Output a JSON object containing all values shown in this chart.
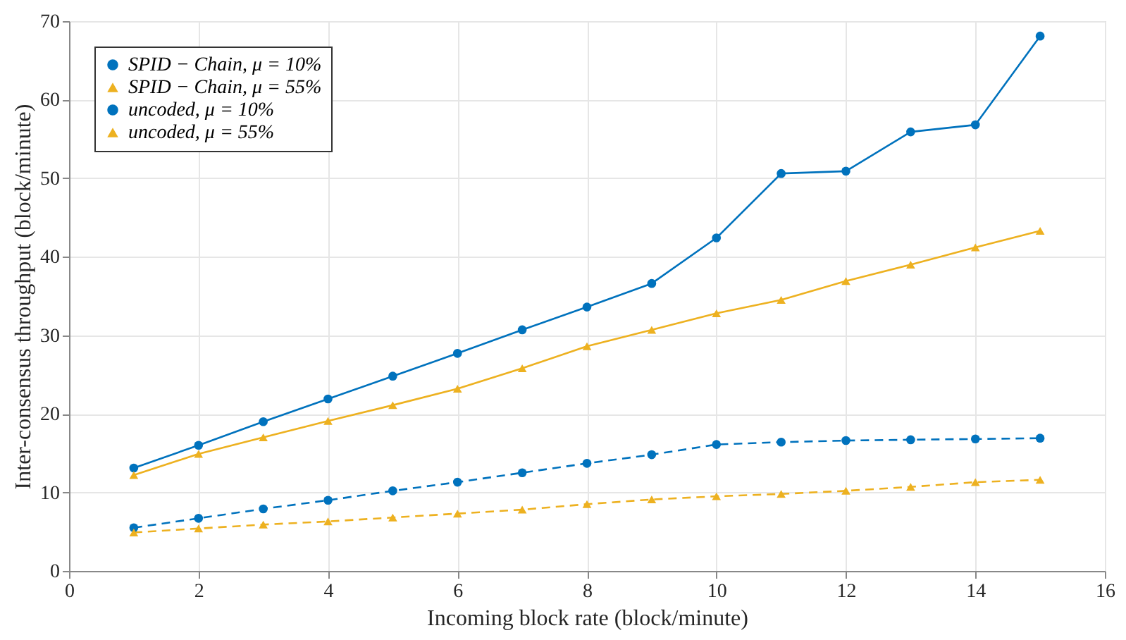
{
  "chart_data": {
    "type": "line",
    "xlabel": "Incoming block rate (block/minute)",
    "ylabel": "Inter-consensus throughput (block/minute)",
    "x": [
      1,
      2,
      3,
      4,
      5,
      6,
      7,
      8,
      9,
      10,
      11,
      12,
      13,
      14,
      15
    ],
    "series": [
      {
        "name": "SPID − Chain, μ = 10%",
        "color": "#0072bd",
        "marker": "circle",
        "line_style": "solid",
        "values": [
          13.1,
          16.0,
          19.0,
          21.9,
          24.8,
          27.7,
          30.7,
          33.6,
          36.6,
          42.4,
          50.6,
          50.9,
          55.9,
          56.8,
          68.1
        ]
      },
      {
        "name": "SPID − Chain, μ = 55%",
        "color": "#edb120",
        "marker": "triangle",
        "line_style": "solid",
        "values": [
          12.2,
          14.9,
          17.0,
          19.1,
          21.1,
          23.2,
          25.8,
          28.6,
          30.7,
          32.8,
          34.5,
          36.9,
          39.0,
          41.2,
          43.3
        ]
      },
      {
        "name": "uncoded, μ = 10%",
        "color": "#0072bd",
        "marker": "circle",
        "line_style": "dashed",
        "values": [
          5.5,
          6.7,
          7.9,
          9.0,
          10.2,
          11.3,
          12.5,
          13.7,
          14.8,
          16.1,
          16.4,
          16.6,
          16.7,
          16.8,
          16.9
        ]
      },
      {
        "name": "uncoded, μ = 55%",
        "color": "#edb120",
        "marker": "triangle",
        "line_style": "dashed",
        "values": [
          4.9,
          5.4,
          5.9,
          6.3,
          6.8,
          7.3,
          7.8,
          8.5,
          9.1,
          9.5,
          9.8,
          10.2,
          10.7,
          11.3,
          11.6
        ]
      }
    ],
    "xlim": [
      0,
      16
    ],
    "xticks": [
      0,
      2,
      4,
      6,
      8,
      10,
      12,
      14,
      16
    ],
    "ylim": [
      0,
      70
    ],
    "yticks": [
      0,
      10,
      20,
      30,
      40,
      50,
      60,
      70
    ],
    "grid": true,
    "legend": "top left"
  }
}
